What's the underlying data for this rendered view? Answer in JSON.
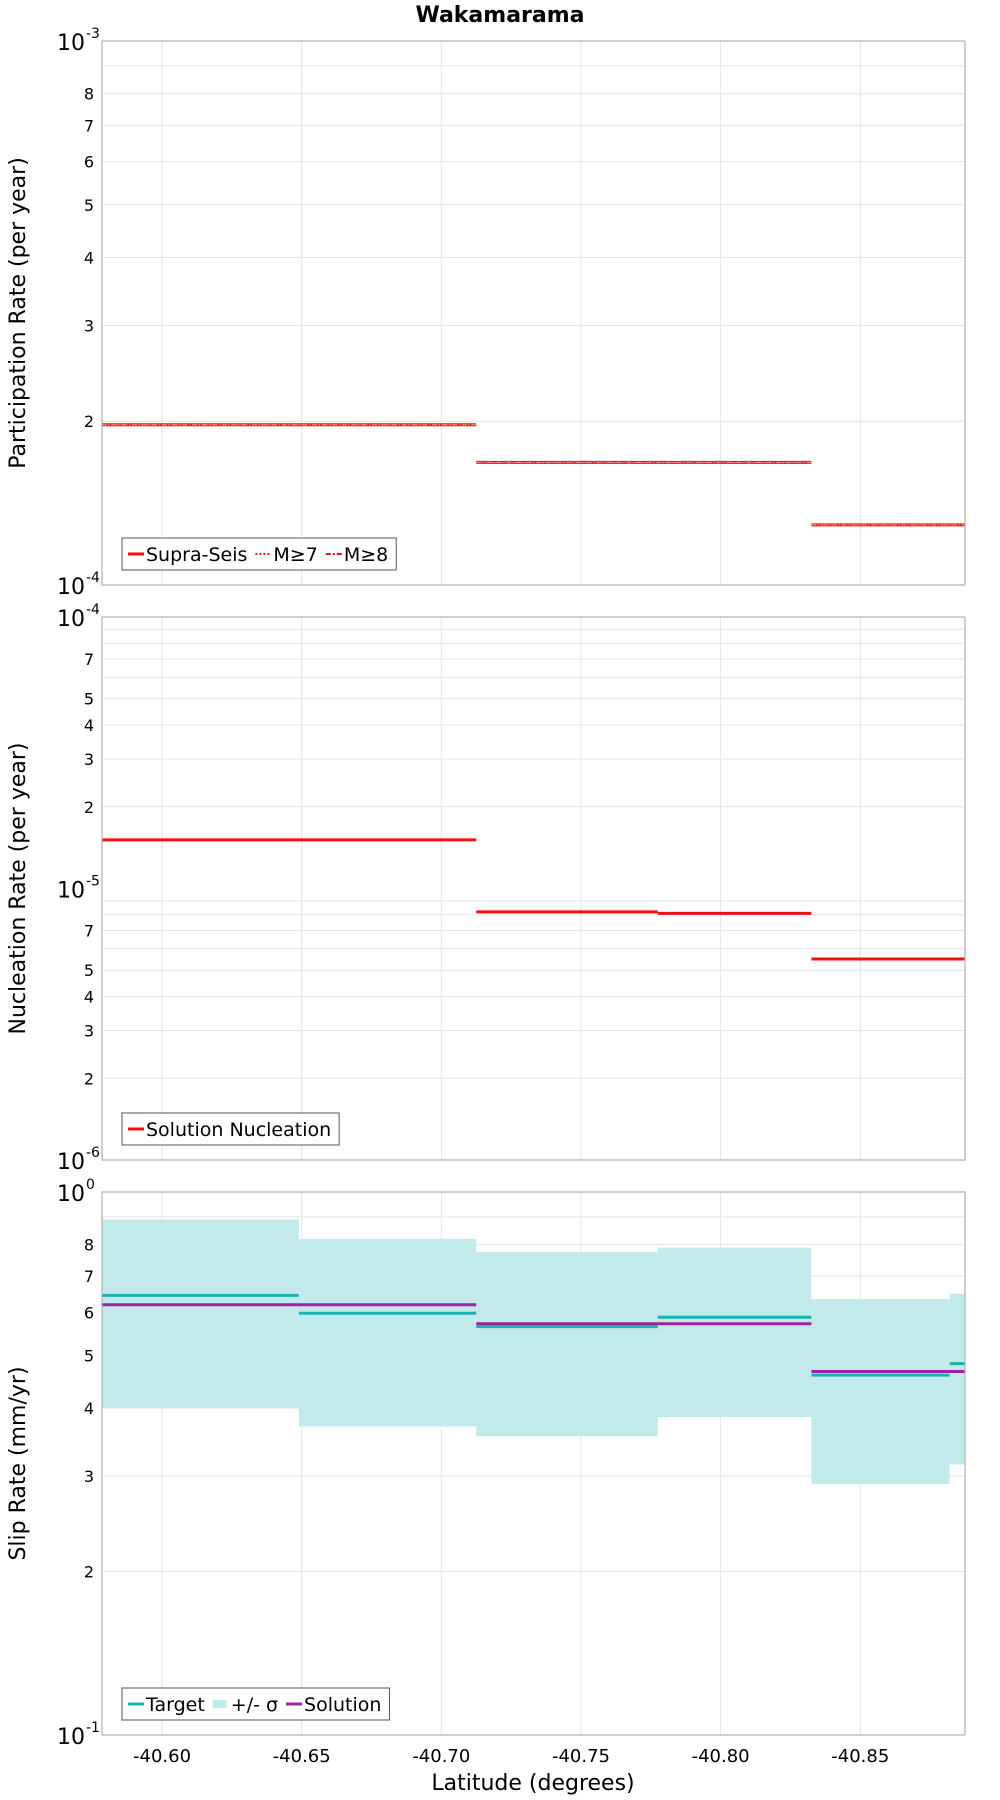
{
  "title": "Wakamarama",
  "xlabel": "Latitude (degrees)",
  "xlim": [
    -40.5785,
    -40.8875
  ],
  "xticks": [
    -40.6,
    -40.65,
    -40.7,
    -40.75,
    -40.8,
    -40.85
  ],
  "xtick_labels": [
    "-40.60",
    "-40.65",
    "-40.70",
    "-40.75",
    "-40.80",
    "-40.85"
  ],
  "colors": {
    "red": "#ee1111",
    "target": "#1ab3b3",
    "band": "#c3eaea",
    "solution": "#a020a8",
    "grid": "#e4e4e4",
    "frame": "#b0b0b0"
  },
  "chart_data": [
    {
      "type": "line",
      "ylabel": "Participation Rate (per year)",
      "yscale": "log",
      "ylim": [
        0.0001,
        0.001
      ],
      "decade_labels": [
        {
          "value": 0.001,
          "base": "10",
          "exp": "-3"
        },
        {
          "value": 0.0001,
          "base": "10",
          "exp": "-4"
        }
      ],
      "minor_ticks": [
        {
          "value": 0.0002,
          "label": "2"
        },
        {
          "value": 0.0003,
          "label": "3"
        },
        {
          "value": 0.0004,
          "label": "4"
        },
        {
          "value": 0.0005,
          "label": "5"
        },
        {
          "value": 0.0006,
          "label": "6"
        },
        {
          "value": 0.0007,
          "label": "7"
        },
        {
          "value": 0.0008,
          "label": "8"
        }
      ],
      "extra_grid": [
        0.0009
      ],
      "legend": [
        "Supra-Seis",
        "M≥7",
        "M≥8"
      ],
      "series": [
        {
          "name": "Supra-Seis",
          "style": "solid",
          "segments": [
            {
              "x1": -40.5785,
              "x2": -40.7125,
              "y": 0.000197
            },
            {
              "x1": -40.7125,
              "x2": -40.8325,
              "y": 0.000168
            },
            {
              "x1": -40.8325,
              "x2": -40.8875,
              "y": 0.000129
            }
          ]
        },
        {
          "name": "M≥7",
          "style": "dotted",
          "segments": [
            {
              "x1": -40.5785,
              "x2": -40.7125,
              "y": 0.000197
            },
            {
              "x1": -40.7125,
              "x2": -40.8325,
              "y": 0.000168
            },
            {
              "x1": -40.8325,
              "x2": -40.8875,
              "y": 0.000129
            }
          ]
        },
        {
          "name": "M≥8",
          "style": "dashdot",
          "segments": [
            {
              "x1": -40.5785,
              "x2": -40.7125,
              "y": 0.000197
            },
            {
              "x1": -40.7125,
              "x2": -40.8325,
              "y": 0.000168
            },
            {
              "x1": -40.8325,
              "x2": -40.8875,
              "y": 0.000129
            }
          ]
        }
      ]
    },
    {
      "type": "line",
      "ylabel": "Nucleation Rate (per year)",
      "yscale": "log",
      "ylim": [
        1e-06,
        0.0001
      ],
      "decade_labels": [
        {
          "value": 0.0001,
          "base": "10",
          "exp": "-4"
        },
        {
          "value": 1e-05,
          "base": "10",
          "exp": "-5"
        },
        {
          "value": 1e-06,
          "base": "10",
          "exp": "-6"
        }
      ],
      "minor_ticks": [
        {
          "value": 2e-05,
          "label": "2"
        },
        {
          "value": 3e-05,
          "label": "3"
        },
        {
          "value": 4e-05,
          "label": "4"
        },
        {
          "value": 5e-05,
          "label": "5"
        },
        {
          "value": 7e-05,
          "label": "7"
        },
        {
          "value": 2e-06,
          "label": "2"
        },
        {
          "value": 3e-06,
          "label": "3"
        },
        {
          "value": 4e-06,
          "label": "4"
        },
        {
          "value": 5e-06,
          "label": "5"
        },
        {
          "value": 7e-06,
          "label": "7"
        }
      ],
      "extra_grid": [
        6e-05,
        8e-05,
        9e-05,
        6e-06,
        8e-06,
        9e-06
      ],
      "legend": [
        "Solution Nucleation"
      ],
      "series": [
        {
          "name": "Solution Nucleation",
          "style": "solid",
          "segments": [
            {
              "x1": -40.5785,
              "x2": -40.649,
              "y": 1.51e-05
            },
            {
              "x1": -40.649,
              "x2": -40.7125,
              "y": 1.51e-05
            },
            {
              "x1": -40.7125,
              "x2": -40.7775,
              "y": 8.2e-06
            },
            {
              "x1": -40.7775,
              "x2": -40.8325,
              "y": 8.1e-06
            },
            {
              "x1": -40.8325,
              "x2": -40.8875,
              "y": 5.5e-06
            }
          ]
        }
      ]
    },
    {
      "type": "area",
      "ylabel": "Slip Rate (mm/yr)",
      "yscale": "log",
      "ylim": [
        0.1,
        1.0
      ],
      "decade_labels": [
        {
          "value": 1.0,
          "base": "10",
          "exp": "0"
        },
        {
          "value": 0.1,
          "base": "10",
          "exp": "-1"
        }
      ],
      "minor_ticks": [
        {
          "value": 0.2,
          "label": "2"
        },
        {
          "value": 0.3,
          "label": "3"
        },
        {
          "value": 0.4,
          "label": "4"
        },
        {
          "value": 0.5,
          "label": "5"
        },
        {
          "value": 0.6,
          "label": "6"
        },
        {
          "value": 0.7,
          "label": "7"
        },
        {
          "value": 0.8,
          "label": "8"
        }
      ],
      "extra_grid": [
        0.9
      ],
      "legend": [
        "Target",
        "+/- σ",
        "Solution"
      ],
      "band": [
        {
          "x1": -40.5785,
          "x2": -40.649,
          "low": 0.4,
          "high": 0.89
        },
        {
          "x1": -40.649,
          "x2": -40.7125,
          "low": 0.37,
          "high": 0.82
        },
        {
          "x1": -40.7125,
          "x2": -40.7775,
          "low": 0.355,
          "high": 0.775
        },
        {
          "x1": -40.7775,
          "x2": -40.8325,
          "low": 0.385,
          "high": 0.79
        },
        {
          "x1": -40.8325,
          "x2": -40.882,
          "low": 0.29,
          "high": 0.635
        },
        {
          "x1": -40.882,
          "x2": -40.8875,
          "low": 0.315,
          "high": 0.65
        }
      ],
      "series": [
        {
          "name": "Target",
          "segments": [
            {
              "x1": -40.5785,
              "x2": -40.649,
              "y": 0.645
            },
            {
              "x1": -40.649,
              "x2": -40.7125,
              "y": 0.598
            },
            {
              "x1": -40.7125,
              "x2": -40.7775,
              "y": 0.565
            },
            {
              "x1": -40.7775,
              "x2": -40.8325,
              "y": 0.588
            },
            {
              "x1": -40.8325,
              "x2": -40.882,
              "y": 0.46
            },
            {
              "x1": -40.882,
              "x2": -40.8875,
              "y": 0.483
            }
          ]
        },
        {
          "name": "Solution",
          "segments": [
            {
              "x1": -40.5785,
              "x2": -40.7125,
              "y": 0.62
            },
            {
              "x1": -40.7125,
              "x2": -40.8325,
              "y": 0.572
            },
            {
              "x1": -40.8325,
              "x2": -40.8875,
              "y": 0.467
            }
          ]
        }
      ]
    }
  ]
}
